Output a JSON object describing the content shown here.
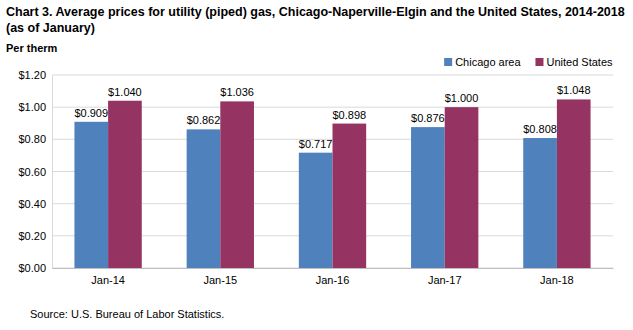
{
  "chart_data": {
    "type": "bar",
    "title": "Chart 3. Average prices for utility (piped) gas, Chicago-Naperville-Elgin and the United States, 2014-2018 (as of January)",
    "y_label": "Per therm",
    "source": "Source: U.S. Bureau of Labor Statistics.",
    "categories": [
      "Jan-14",
      "Jan-15",
      "Jan-16",
      "Jan-17",
      "Jan-18"
    ],
    "series": [
      {
        "name": "Chicago area",
        "color": "#4f81bd",
        "values": [
          0.909,
          0.862,
          0.717,
          0.876,
          0.808
        ],
        "value_labels": [
          "$0.909",
          "$0.862",
          "$0.717",
          "$0.876",
          "$0.808"
        ]
      },
      {
        "name": "United States",
        "color": "#953362",
        "values": [
          1.04,
          1.036,
          0.898,
          1.0,
          1.048
        ],
        "value_labels": [
          "$1.040",
          "$1.036",
          "$0.898",
          "$1.000",
          "$1.048"
        ]
      }
    ],
    "ylim": [
      0,
      1.2
    ],
    "yticks": [
      {
        "value": 0,
        "label": "$0.00"
      },
      {
        "value": 0.2,
        "label": "$0.20"
      },
      {
        "value": 0.4,
        "label": "$0.40"
      },
      {
        "value": 0.6,
        "label": "$0.60"
      },
      {
        "value": 0.8,
        "label": "$0.80"
      },
      {
        "value": 1.0,
        "label": "$1.00"
      },
      {
        "value": 1.2,
        "label": "$1.20"
      }
    ],
    "grid": true,
    "legend": "top-right",
    "data_labels": true
  }
}
